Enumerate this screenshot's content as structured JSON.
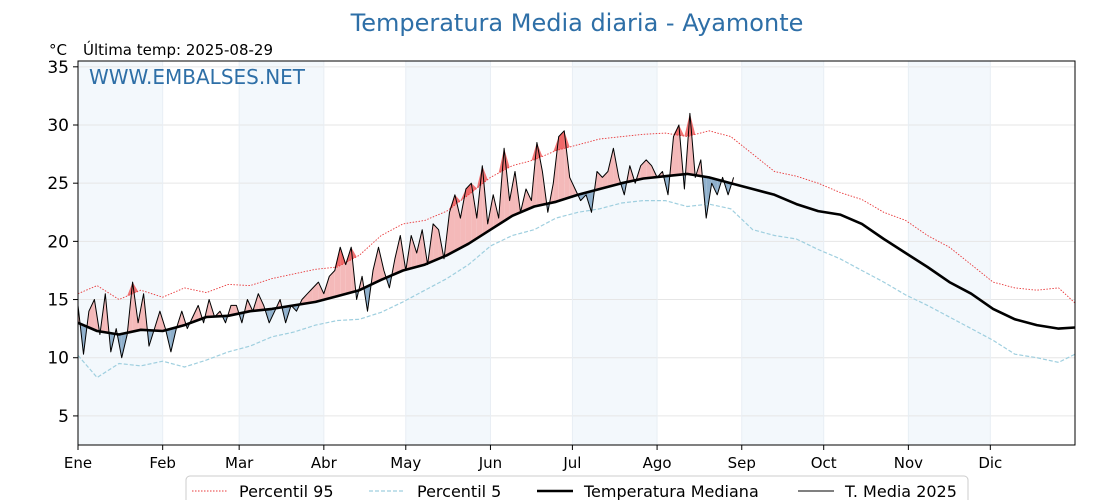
{
  "chart_data": {
    "type": "line",
    "title": "Temperatura Media diaria - Ayamonte",
    "unit_label": "°C",
    "last_temp_label": "Última temp: 2025-08-29",
    "watermark": "WWW.EMBALSES.NET",
    "ylim": [
      2.5,
      35.5
    ],
    "yticks": [
      5,
      10,
      15,
      20,
      25,
      30,
      35
    ],
    "xlim": [
      1,
      366
    ],
    "month_labels": [
      "Ene",
      "Feb",
      "Mar",
      "Abr",
      "May",
      "Jun",
      "Jul",
      "Ago",
      "Sep",
      "Oct",
      "Nov",
      "Dic"
    ],
    "month_start_days": [
      1,
      32,
      60,
      91,
      121,
      152,
      182,
      213,
      244,
      274,
      305,
      335
    ],
    "grid": true,
    "shaded_months": [
      "Ene",
      "Mar",
      "May",
      "Jul",
      "Sep",
      "Nov"
    ],
    "legend_position": "bottom",
    "series": [
      {
        "name": "Percentil 95",
        "color": "#e8383a",
        "style": "dotted",
        "x": [
          1,
          8,
          16,
          24,
          32,
          40,
          48,
          56,
          64,
          72,
          80,
          88,
          96,
          104,
          112,
          120,
          128,
          136,
          144,
          152,
          160,
          168,
          176,
          184,
          192,
          200,
          208,
          216,
          224,
          232,
          240,
          248,
          256,
          264,
          272,
          280,
          288,
          296,
          304,
          312,
          320,
          328,
          336,
          344,
          352,
          360,
          366
        ],
        "values": [
          15.5,
          16.2,
          15.0,
          15.8,
          15.2,
          16.0,
          15.6,
          16.3,
          16.2,
          16.8,
          17.2,
          17.6,
          17.8,
          18.8,
          20.5,
          21.5,
          21.8,
          22.6,
          24.0,
          25.5,
          26.5,
          27.0,
          27.8,
          28.3,
          28.8,
          29.0,
          29.2,
          29.3,
          29.0,
          29.5,
          29.0,
          27.5,
          26.0,
          25.6,
          25.0,
          24.2,
          23.6,
          22.5,
          21.8,
          20.5,
          19.5,
          18.0,
          16.5,
          16.0,
          15.8,
          16.0,
          14.7
        ]
      },
      {
        "name": "Percentil 5",
        "color": "#9fcfdf",
        "style": "dashed",
        "x": [
          1,
          8,
          16,
          24,
          32,
          40,
          48,
          56,
          64,
          72,
          80,
          88,
          96,
          104,
          112,
          120,
          128,
          136,
          144,
          152,
          160,
          168,
          176,
          184,
          192,
          200,
          208,
          216,
          224,
          232,
          240,
          248,
          256,
          264,
          272,
          280,
          288,
          296,
          304,
          312,
          320,
          328,
          336,
          344,
          352,
          360,
          366
        ],
        "values": [
          10.2,
          8.3,
          9.5,
          9.3,
          9.7,
          9.2,
          9.8,
          10.5,
          11.0,
          11.8,
          12.2,
          12.8,
          13.2,
          13.3,
          13.9,
          14.8,
          15.8,
          16.8,
          18.0,
          19.6,
          20.5,
          21.0,
          22.0,
          22.5,
          22.8,
          23.3,
          23.5,
          23.5,
          23.0,
          23.2,
          22.8,
          21.0,
          20.5,
          20.2,
          19.3,
          18.5,
          17.5,
          16.5,
          15.4,
          14.5,
          13.5,
          12.5,
          11.5,
          10.3,
          10.0,
          9.6,
          10.3
        ]
      },
      {
        "name": "Temperatura Mediana",
        "color": "#000000",
        "style": "solid-thick",
        "x": [
          1,
          8,
          16,
          24,
          32,
          40,
          48,
          56,
          64,
          72,
          80,
          88,
          96,
          104,
          112,
          120,
          128,
          136,
          144,
          152,
          160,
          168,
          176,
          184,
          192,
          200,
          208,
          216,
          224,
          232,
          240,
          248,
          256,
          264,
          272,
          280,
          288,
          296,
          304,
          312,
          320,
          328,
          336,
          344,
          352,
          360,
          366
        ],
        "values": [
          13.0,
          12.3,
          12.0,
          12.4,
          12.3,
          12.8,
          13.5,
          13.6,
          14.0,
          14.2,
          14.5,
          14.8,
          15.3,
          15.8,
          16.7,
          17.5,
          18.0,
          18.8,
          19.8,
          21.0,
          22.2,
          23.0,
          23.4,
          24.0,
          24.5,
          25.0,
          25.4,
          25.6,
          25.8,
          25.5,
          25.0,
          24.5,
          24.0,
          23.2,
          22.6,
          22.3,
          21.5,
          20.2,
          19.0,
          17.8,
          16.5,
          15.5,
          14.2,
          13.3,
          12.8,
          12.5,
          12.6
        ]
      },
      {
        "name": "T. Media 2025",
        "color": "#000000",
        "style": "solid-thin",
        "x": [
          1,
          3,
          5,
          7,
          9,
          11,
          13,
          15,
          17,
          19,
          21,
          23,
          25,
          27,
          29,
          31,
          33,
          35,
          37,
          39,
          41,
          43,
          45,
          47,
          49,
          51,
          53,
          55,
          57,
          59,
          61,
          63,
          65,
          67,
          69,
          71,
          73,
          75,
          77,
          79,
          81,
          83,
          85,
          87,
          89,
          91,
          93,
          95,
          97,
          99,
          101,
          103,
          105,
          107,
          109,
          111,
          113,
          115,
          117,
          119,
          121,
          123,
          125,
          127,
          129,
          131,
          133,
          135,
          137,
          139,
          141,
          143,
          145,
          147,
          149,
          151,
          153,
          155,
          157,
          159,
          161,
          163,
          165,
          167,
          169,
          171,
          173,
          175,
          177,
          179,
          181,
          183,
          185,
          187,
          189,
          191,
          193,
          195,
          197,
          199,
          201,
          203,
          205,
          207,
          209,
          211,
          213,
          215,
          217,
          219,
          221,
          223,
          225,
          227,
          229,
          231,
          233,
          235,
          237,
          239,
          241
        ],
        "values": [
          14.5,
          10.3,
          14.0,
          15.0,
          12.0,
          15.5,
          10.5,
          12.5,
          10.0,
          12.0,
          16.5,
          13.0,
          15.5,
          11.0,
          12.5,
          14.0,
          12.5,
          10.5,
          12.5,
          14.0,
          12.5,
          13.5,
          14.5,
          13.0,
          15.0,
          13.5,
          14.0,
          13.0,
          14.5,
          14.5,
          13.0,
          15.0,
          14.0,
          15.5,
          14.5,
          13.0,
          14.0,
          15.0,
          13.0,
          14.5,
          14.0,
          15.0,
          15.5,
          16.0,
          16.5,
          15.5,
          17.0,
          17.5,
          19.5,
          18.0,
          19.5,
          15.0,
          17.0,
          14.0,
          17.5,
          19.5,
          17.5,
          16.0,
          18.5,
          20.5,
          17.5,
          20.5,
          19.0,
          21.0,
          18.0,
          21.5,
          21.0,
          18.5,
          22.5,
          24.0,
          22.0,
          24.5,
          25.0,
          22.0,
          26.5,
          21.5,
          24.0,
          22.0,
          28.0,
          23.5,
          26.0,
          22.5,
          24.5,
          23.5,
          28.5,
          26.0,
          22.5,
          25.0,
          29.0,
          29.5,
          25.5,
          24.5,
          23.5,
          24.0,
          22.5,
          26.0,
          25.5,
          26.0,
          28.0,
          25.5,
          24.0,
          26.5,
          25.0,
          26.5,
          27.0,
          26.5,
          25.5,
          26.0,
          24.0,
          29.0,
          30.0,
          24.5,
          31.0,
          25.5,
          27.0,
          22.0,
          25.0,
          24.0,
          25.5,
          24.0,
          25.5
        ]
      }
    ]
  },
  "legend": {
    "items": [
      {
        "label": "Percentil 95"
      },
      {
        "label": "Percentil 5"
      },
      {
        "label": "Temperatura Mediana"
      },
      {
        "label": "T. Media 2025"
      }
    ]
  }
}
